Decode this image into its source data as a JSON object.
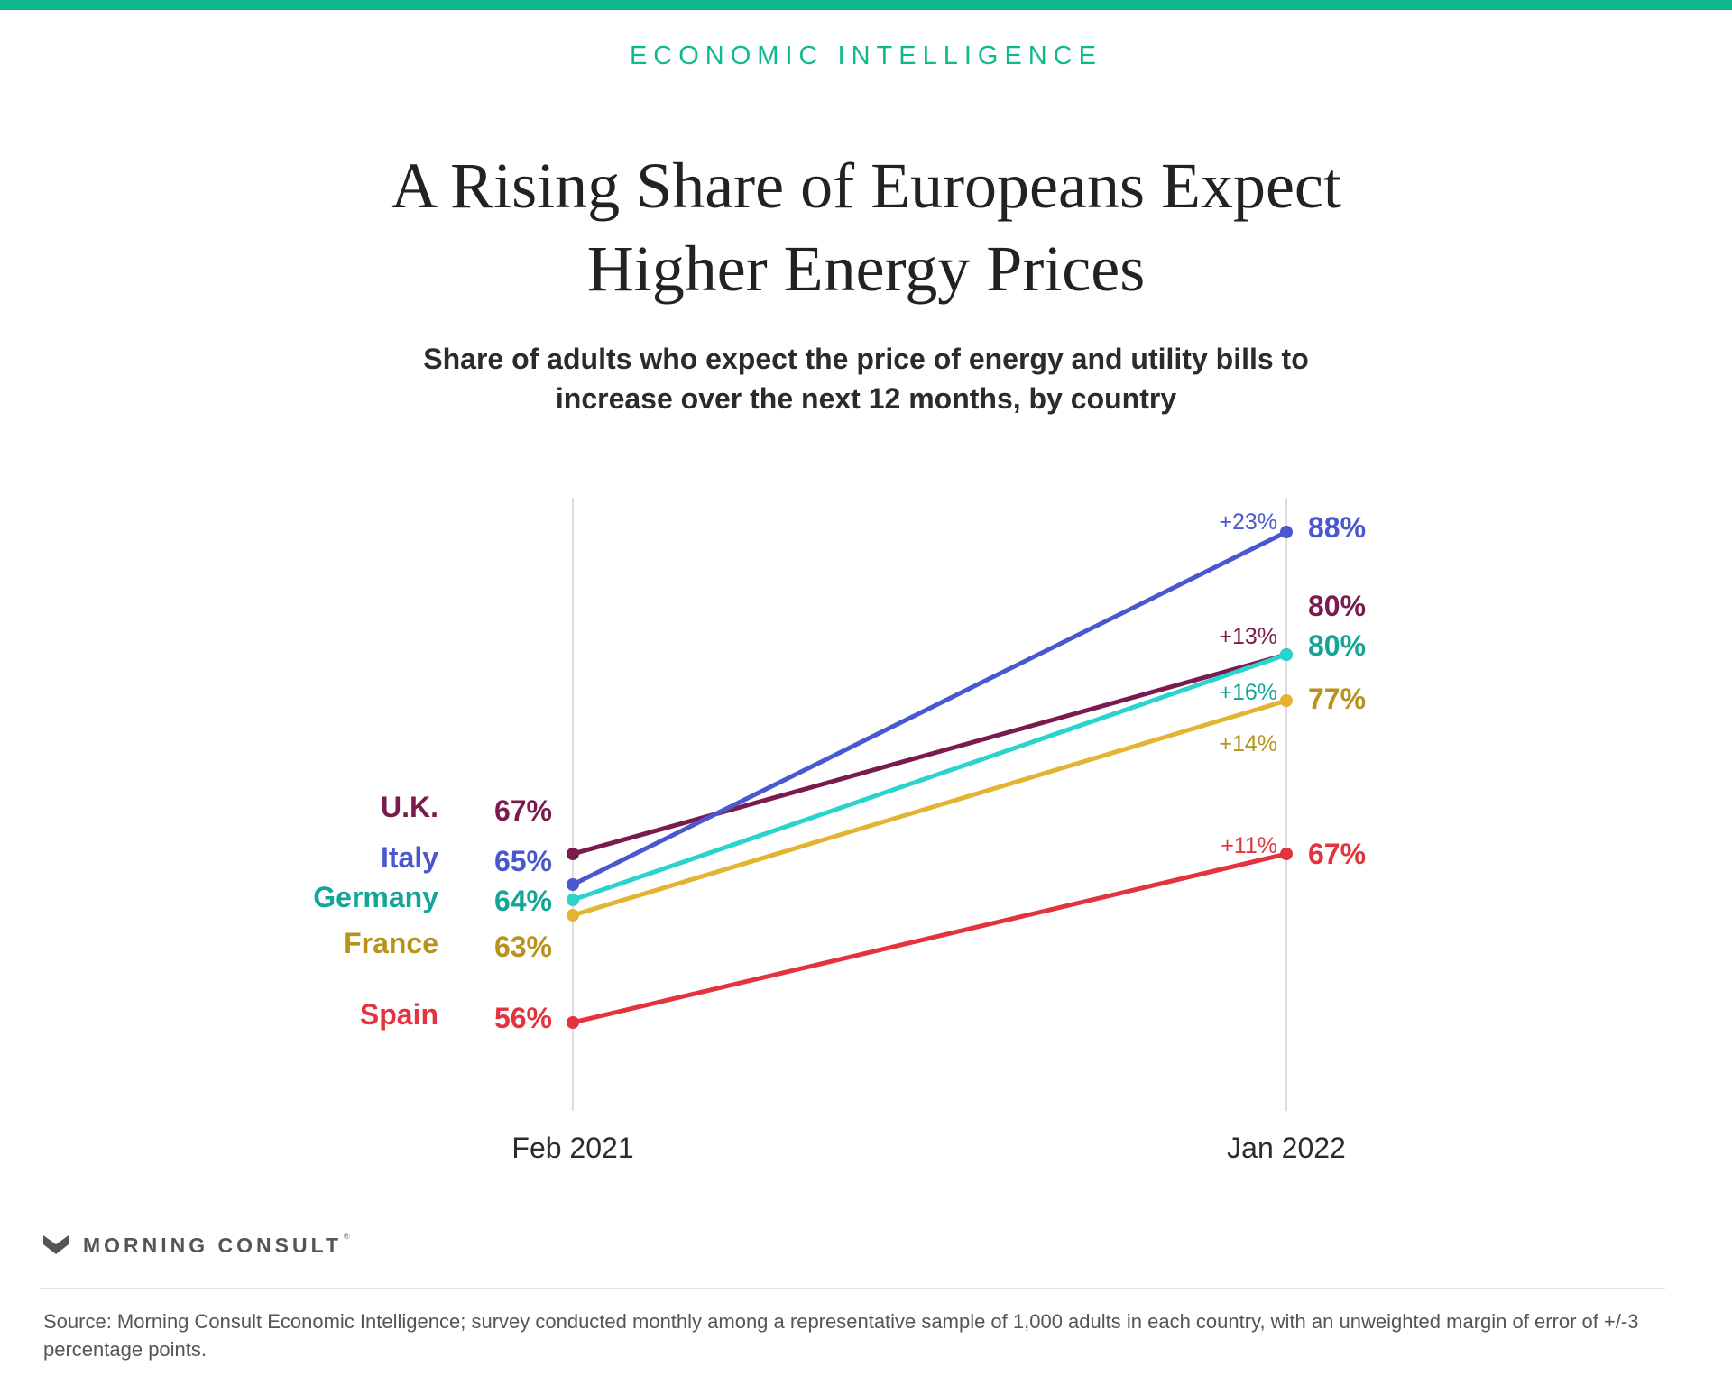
{
  "brand": {
    "accent_color": "#10b98c",
    "kicker": "ECONOMIC INTELLIGENCE",
    "logo_name": "MORNING CONSULT",
    "logo_reg": "®"
  },
  "header": {
    "title_lines": [
      "A Rising Share of Europeans Expect",
      "Higher Energy Prices"
    ],
    "subtitle_lines": [
      "Share of adults who expect the price of energy and utility bills to",
      "increase over the next 12 months, by country"
    ]
  },
  "footer": {
    "source": "Source: Morning Consult Economic Intelligence; survey conducted monthly among a representative sample of 1,000 adults in each country, with an unweighted margin of error of +/-3 percentage points."
  },
  "chart_data": {
    "type": "line",
    "chart_style": "slope",
    "x": [
      "Feb 2021",
      "Jan 2022"
    ],
    "ylim": [
      50,
      90
    ],
    "grid": "vertical lines at each x category",
    "legend": "country labels at left of first point",
    "series": [
      {
        "name": "U.K.",
        "color": "#7a1a4e",
        "values": [
          67,
          80
        ],
        "start_label": "67%",
        "end_label": "80%",
        "change_label": "+13%",
        "change_color": "#7a1a4e"
      },
      {
        "name": "Italy",
        "color": "#4a58d0",
        "values": [
          65,
          88
        ],
        "start_label": "65%",
        "end_label": "88%",
        "change_label": "+23%",
        "change_color": "#4a58d0"
      },
      {
        "name": "Germany",
        "color": "#2ad4cc",
        "label_color": "#14a597",
        "values": [
          64,
          80
        ],
        "start_label": "64%",
        "end_label": "80%",
        "change_label": "+16%",
        "change_color": "#14a597"
      },
      {
        "name": "France",
        "color": "#e2b431",
        "label_color": "#b8921b",
        "values": [
          63,
          77
        ],
        "start_label": "63%",
        "end_label": "77%",
        "change_label": "+14%",
        "change_color": "#b8921b"
      },
      {
        "name": "Spain",
        "color": "#e3333e",
        "values": [
          56,
          67
        ],
        "start_label": "56%",
        "end_label": "67%",
        "change_label": "+11%",
        "change_color": "#e3333e"
      }
    ]
  }
}
